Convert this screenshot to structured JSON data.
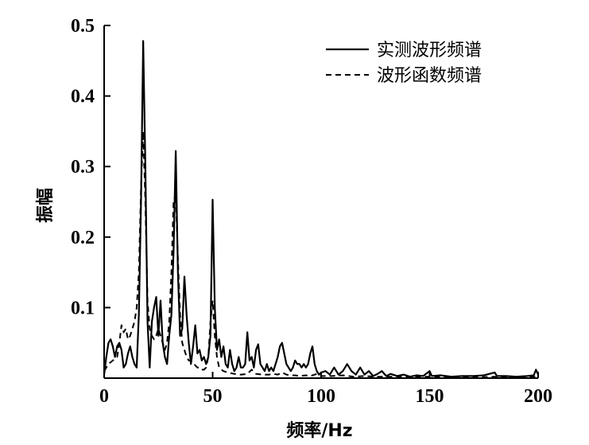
{
  "chart_data": {
    "type": "line",
    "title": "",
    "xlabel": "频率/Hz",
    "ylabel": "振幅",
    "xlim": [
      0,
      200
    ],
    "ylim": [
      0,
      0.5
    ],
    "x_ticks": [
      0,
      50,
      100,
      150,
      200
    ],
    "x_tick_labels": [
      "0",
      "50",
      "100",
      "150",
      "200"
    ],
    "y_ticks": [
      0.1,
      0.2,
      0.3,
      0.4,
      0.5
    ],
    "y_tick_labels": [
      "0.1",
      "0.2",
      "0.3",
      "0.4",
      "0.5"
    ],
    "grid": false,
    "legend_position": "top-right",
    "series": [
      {
        "name": "实测波形频谱",
        "style": "solid",
        "color": "#000000",
        "points": [
          [
            0,
            0.005
          ],
          [
            1,
            0.03
          ],
          [
            2,
            0.05
          ],
          [
            3,
            0.055
          ],
          [
            4,
            0.045
          ],
          [
            5,
            0.03
          ],
          [
            6,
            0.045
          ],
          [
            7,
            0.05
          ],
          [
            8,
            0.04
          ],
          [
            9,
            0.015
          ],
          [
            10,
            0.02
          ],
          [
            11,
            0.035
          ],
          [
            12,
            0.045
          ],
          [
            13,
            0.03
          ],
          [
            14,
            0.02
          ],
          [
            15,
            0.015
          ],
          [
            16,
            0.09
          ],
          [
            17,
            0.25
          ],
          [
            18,
            0.478
          ],
          [
            19,
            0.3
          ],
          [
            20,
            0.08
          ],
          [
            21,
            0.015
          ],
          [
            22,
            0.08
          ],
          [
            23,
            0.1
          ],
          [
            24,
            0.115
          ],
          [
            25,
            0.06
          ],
          [
            26,
            0.11
          ],
          [
            27,
            0.05
          ],
          [
            28,
            0.03
          ],
          [
            29,
            0.02
          ],
          [
            30,
            0.06
          ],
          [
            31,
            0.09
          ],
          [
            32,
            0.18
          ],
          [
            33,
            0.322
          ],
          [
            34,
            0.15
          ],
          [
            35,
            0.06
          ],
          [
            36,
            0.07
          ],
          [
            37,
            0.144
          ],
          [
            38,
            0.09
          ],
          [
            39,
            0.05
          ],
          [
            40,
            0.02
          ],
          [
            41,
            0.045
          ],
          [
            42,
            0.075
          ],
          [
            43,
            0.035
          ],
          [
            44,
            0.04
          ],
          [
            45,
            0.025
          ],
          [
            46,
            0.03
          ],
          [
            47,
            0.02
          ],
          [
            48,
            0.03
          ],
          [
            49,
            0.06
          ],
          [
            50,
            0.253
          ],
          [
            51,
            0.1
          ],
          [
            52,
            0.04
          ],
          [
            53,
            0.055
          ],
          [
            54,
            0.03
          ],
          [
            55,
            0.045
          ],
          [
            56,
            0.02
          ],
          [
            57,
            0.015
          ],
          [
            58,
            0.04
          ],
          [
            59,
            0.02
          ],
          [
            60,
            0.01
          ],
          [
            61,
            0.015
          ],
          [
            62,
            0.03
          ],
          [
            63,
            0.015
          ],
          [
            64,
            0.015
          ],
          [
            65,
            0.02
          ],
          [
            66,
            0.065
          ],
          [
            67,
            0.025
          ],
          [
            68,
            0.03
          ],
          [
            69,
            0.015
          ],
          [
            70,
            0.04
          ],
          [
            71,
            0.048
          ],
          [
            72,
            0.02
          ],
          [
            73,
            0.015
          ],
          [
            74,
            0.01
          ],
          [
            75,
            0.02
          ],
          [
            76,
            0.01
          ],
          [
            77,
            0.015
          ],
          [
            78,
            0.01
          ],
          [
            79,
            0.02
          ],
          [
            80,
            0.03
          ],
          [
            81,
            0.045
          ],
          [
            82,
            0.05
          ],
          [
            83,
            0.035
          ],
          [
            84,
            0.02
          ],
          [
            85,
            0.015
          ],
          [
            86,
            0.01
          ],
          [
            87,
            0.015
          ],
          [
            88,
            0.025
          ],
          [
            89,
            0.02
          ],
          [
            90,
            0.02
          ],
          [
            91,
            0.015
          ],
          [
            92,
            0.02
          ],
          [
            93,
            0.015
          ],
          [
            94,
            0.02
          ],
          [
            95,
            0.035
          ],
          [
            96,
            0.045
          ],
          [
            97,
            0.02
          ],
          [
            98,
            0.01
          ],
          [
            99,
            0.005
          ],
          [
            100,
            0.008
          ],
          [
            102,
            0.01
          ],
          [
            104,
            0.005
          ],
          [
            106,
            0.015
          ],
          [
            108,
            0.005
          ],
          [
            110,
            0.01
          ],
          [
            112,
            0.02
          ],
          [
            114,
            0.01
          ],
          [
            116,
            0.005
          ],
          [
            118,
            0.015
          ],
          [
            120,
            0.005
          ],
          [
            122,
            0.01
          ],
          [
            124,
            0.003
          ],
          [
            126,
            0.006
          ],
          [
            128,
            0.01
          ],
          [
            130,
            0.003
          ],
          [
            132,
            0.006
          ],
          [
            135,
            0.003
          ],
          [
            138,
            0.005
          ],
          [
            141,
            0.002
          ],
          [
            144,
            0.004
          ],
          [
            147,
            0.003
          ],
          [
            150,
            0.01
          ],
          [
            151,
            0.003
          ],
          [
            155,
            0.004
          ],
          [
            160,
            0.002
          ],
          [
            165,
            0.003
          ],
          [
            170,
            0.003
          ],
          [
            175,
            0.004
          ],
          [
            180,
            0.008
          ],
          [
            181,
            0.003
          ],
          [
            185,
            0.003
          ],
          [
            190,
            0.002
          ],
          [
            195,
            0.003
          ],
          [
            198,
            0.004
          ],
          [
            199,
            0.012
          ],
          [
            200,
            0.005
          ]
        ]
      },
      {
        "name": "波形函数频谱",
        "style": "dashed",
        "color": "#000000",
        "points": [
          [
            0,
            0.01
          ],
          [
            2,
            0.02
          ],
          [
            4,
            0.025
          ],
          [
            6,
            0.03
          ],
          [
            7,
            0.05
          ],
          [
            8,
            0.075
          ],
          [
            9,
            0.065
          ],
          [
            10,
            0.07
          ],
          [
            11,
            0.055
          ],
          [
            12,
            0.06
          ],
          [
            13,
            0.07
          ],
          [
            14,
            0.08
          ],
          [
            15,
            0.1
          ],
          [
            16,
            0.15
          ],
          [
            17,
            0.27
          ],
          [
            18,
            0.35
          ],
          [
            19,
            0.25
          ],
          [
            20,
            0.11
          ],
          [
            21,
            0.07
          ],
          [
            22,
            0.06
          ],
          [
            23,
            0.055
          ],
          [
            24,
            0.06
          ],
          [
            25,
            0.07
          ],
          [
            26,
            0.06
          ],
          [
            27,
            0.05
          ],
          [
            28,
            0.04
          ],
          [
            29,
            0.05
          ],
          [
            30,
            0.08
          ],
          [
            31,
            0.15
          ],
          [
            32,
            0.25
          ],
          [
            33,
            0.262
          ],
          [
            34,
            0.17
          ],
          [
            35,
            0.09
          ],
          [
            36,
            0.05
          ],
          [
            37,
            0.04
          ],
          [
            38,
            0.03
          ],
          [
            39,
            0.025
          ],
          [
            40,
            0.025
          ],
          [
            41,
            0.022
          ],
          [
            42,
            0.018
          ],
          [
            43,
            0.015
          ],
          [
            44,
            0.015
          ],
          [
            45,
            0.012
          ],
          [
            46,
            0.012
          ],
          [
            47,
            0.015
          ],
          [
            48,
            0.03
          ],
          [
            49,
            0.08
          ],
          [
            50,
            0.11
          ],
          [
            51,
            0.06
          ],
          [
            52,
            0.03
          ],
          [
            53,
            0.015
          ],
          [
            54,
            0.012
          ],
          [
            55,
            0.01
          ],
          [
            57,
            0.008
          ],
          [
            60,
            0.006
          ],
          [
            63,
            0.005
          ],
          [
            66,
            0.006
          ],
          [
            68,
            0.012
          ],
          [
            70,
            0.006
          ],
          [
            73,
            0.005
          ],
          [
            76,
            0.005
          ],
          [
            78,
            0.006
          ],
          [
            80,
            0.005
          ],
          [
            82,
            0.008
          ],
          [
            84,
            0.005
          ],
          [
            86,
            0.004
          ],
          [
            88,
            0.004
          ],
          [
            90,
            0.003
          ],
          [
            93,
            0.004
          ],
          [
            95,
            0.003
          ],
          [
            98,
            0.006
          ],
          [
            100,
            0.003
          ],
          [
            105,
            0.003
          ],
          [
            110,
            0.004
          ],
          [
            115,
            0.002
          ],
          [
            120,
            0.003
          ],
          [
            125,
            0.002
          ],
          [
            130,
            0.002
          ],
          [
            135,
            0.002
          ],
          [
            140,
            0.002
          ],
          [
            145,
            0.002
          ],
          [
            150,
            0.002
          ],
          [
            160,
            0.002
          ],
          [
            170,
            0.001
          ],
          [
            180,
            0.002
          ],
          [
            190,
            0.001
          ],
          [
            200,
            0.002
          ]
        ]
      }
    ]
  }
}
